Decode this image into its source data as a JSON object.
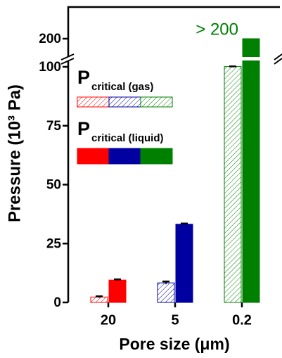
{
  "chart_data": {
    "type": "bar",
    "y_label": "Pressure (10³ Pa)",
    "x_label": "Pore size (μm)",
    "categories": [
      "20",
      "5",
      "0.2"
    ],
    "colors": [
      "#ff0000",
      "#0000a0",
      "#008000"
    ],
    "series": [
      {
        "legend": {
          "symbol": "P",
          "subscript": "critical (gas)"
        },
        "pattern": "hatched",
        "values": [
          2.3,
          8.3,
          101
        ],
        "errors": [
          0.3,
          0.6,
          0.5
        ]
      },
      {
        "legend": {
          "symbol": "P",
          "subscript": "critical (liquid)"
        },
        "pattern": "solid",
        "values": [
          9.5,
          33.2,
          200
        ],
        "errors": [
          0.3,
          0.3,
          null
        ],
        "value_labels": [
          null,
          null,
          "> 200"
        ]
      }
    ],
    "ylim": [
      0,
      200
    ],
    "yticks": [
      0,
      25,
      50,
      75,
      100,
      200
    ],
    "axis_break": true
  }
}
